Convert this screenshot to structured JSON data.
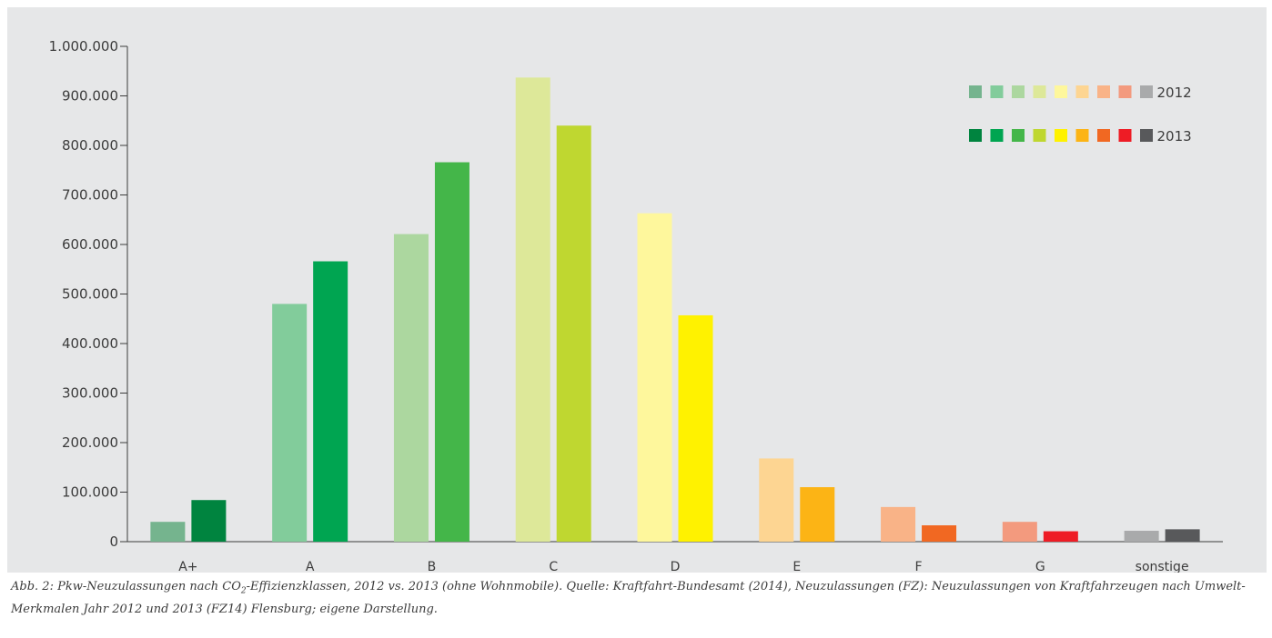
{
  "chart_data": {
    "type": "bar",
    "categories": [
      "A+",
      "A",
      "B",
      "C",
      "D",
      "E",
      "F",
      "G",
      "sonstige"
    ],
    "series": [
      {
        "name": "2012",
        "values": [
          40000,
          480000,
          621000,
          937000,
          663000,
          168000,
          70000,
          40000,
          22000
        ],
        "colors": [
          "#75b48e",
          "#82cc9b",
          "#acd79f",
          "#dde899",
          "#fef79c",
          "#fdd592",
          "#f9b387",
          "#f39a7e",
          "#a9aaab"
        ]
      },
      {
        "name": "2013",
        "values": [
          84000,
          566000,
          766000,
          840000,
          457000,
          110000,
          33000,
          21000,
          25000
        ],
        "colors": [
          "#00843f",
          "#00a551",
          "#44b649",
          "#bfd730",
          "#fff200",
          "#fcb415",
          "#f16822",
          "#ee1c25",
          "#58595b"
        ]
      }
    ],
    "ylim": [
      0,
      1000000
    ],
    "yticks": [
      0,
      100000,
      200000,
      300000,
      400000,
      500000,
      600000,
      700000,
      800000,
      900000,
      1000000
    ],
    "ytick_labels": [
      "0",
      "100.000",
      "200.000",
      "300.000",
      "400.000",
      "500.000",
      "600.000",
      "700.000",
      "800.000",
      "900.000",
      "1.000.000"
    ],
    "legend_position": "top-right",
    "grid": false
  },
  "caption": {
    "part1": "Abb. 2: Pkw-Neuzulassungen nach CO",
    "sub": "2",
    "part2": "-Effizienzklassen, 2012 vs. 2013 (ohne Wohnmobile). Quelle: Kraftfahrt-Bundesamt (2014), Neuzulassungen (FZ): Neuzulassungen von Kraftfahrzeugen nach Umwelt-Merkmalen Jahr 2012 und 2013 (FZ14) Flensburg; eigene Darstellung."
  }
}
